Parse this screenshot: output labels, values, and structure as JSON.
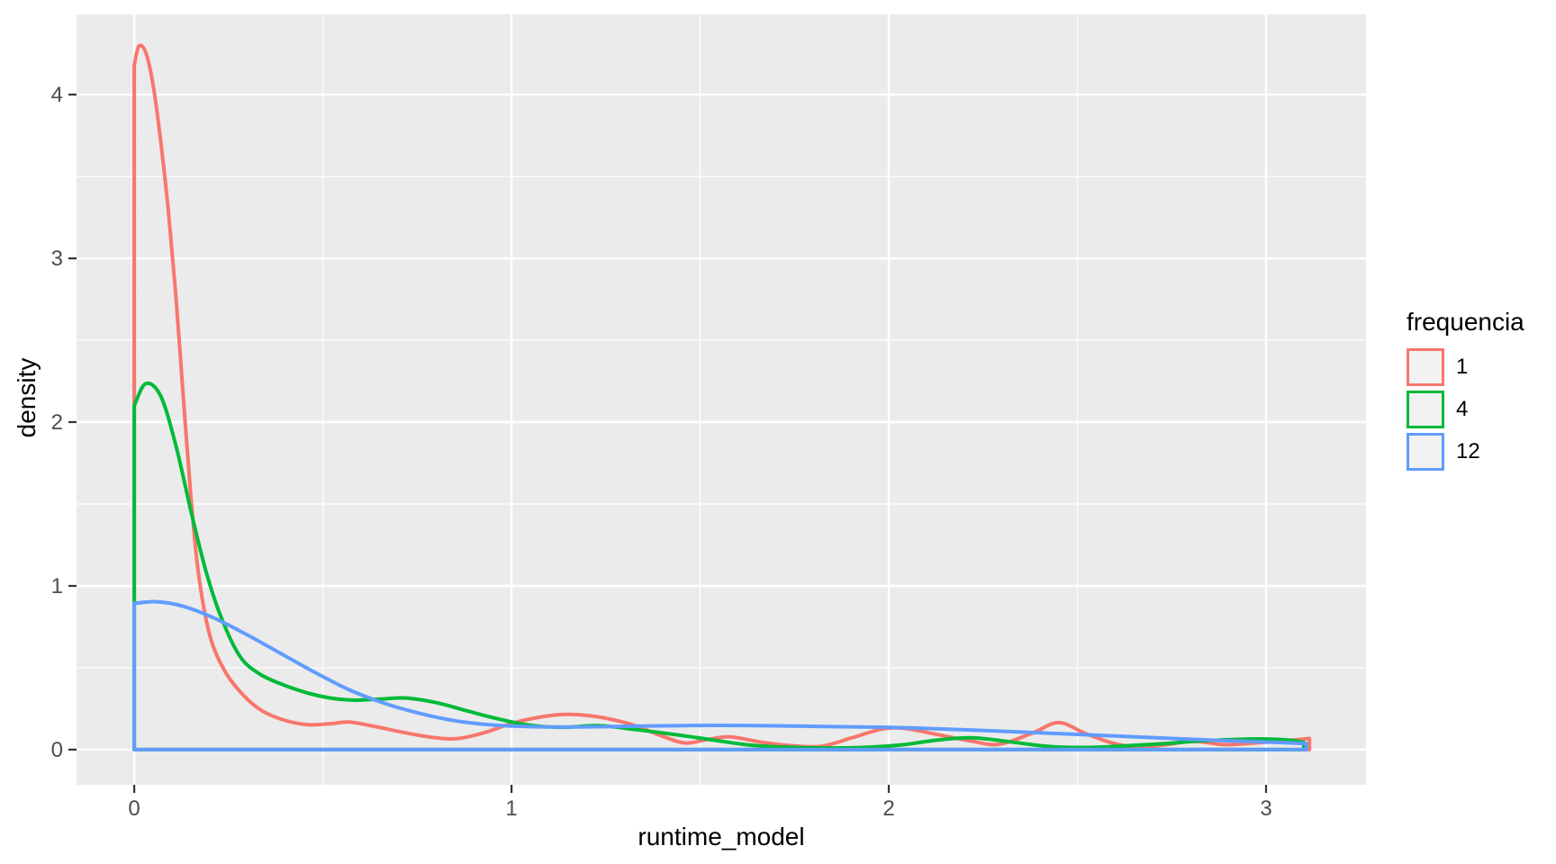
{
  "figure": {
    "background": "#FFFFFF",
    "panel_background": "#EBEBEB",
    "grid_color": "#FFFFFF",
    "tick_mark_color": "#333333",
    "tick_label_color": "#4D4D4D",
    "axis_title_color": "#000000"
  },
  "axes": {
    "x": {
      "title": "runtime_model",
      "tick_labels": [
        "0",
        "1",
        "2",
        "3"
      ],
      "ticks": [
        0,
        1,
        2,
        3
      ],
      "minor_ticks": [
        0.5,
        1.5,
        2.5
      ]
    },
    "y": {
      "title": "density",
      "tick_labels": [
        "0",
        "1",
        "2",
        "3",
        "4"
      ],
      "ticks": [
        0,
        1,
        2,
        3,
        4
      ],
      "minor_ticks": [
        0.5,
        1.5,
        2.5,
        3.5
      ]
    }
  },
  "legend": {
    "title": "frequencia",
    "key_fill": "#F2F2F2",
    "items": [
      {
        "label": "1",
        "color": "#F8766D"
      },
      {
        "label": "4",
        "color": "#00BA38"
      },
      {
        "label": "12",
        "color": "#619CFF"
      }
    ]
  },
  "chart_data": {
    "type": "area",
    "subtype": "density-outlines-closed-to-baseline",
    "title": "",
    "xlabel": "runtime_model",
    "ylabel": "density",
    "xlim": [
      -0.153,
      3.265
    ],
    "ylim": [
      -0.215,
      4.49
    ],
    "grid": true,
    "legend_position": "right",
    "series": [
      {
        "name": "1",
        "color": "#F8766D",
        "points": [
          [
            0,
            4.18
          ],
          [
            0.012,
            4.295
          ],
          [
            0.03,
            4.26
          ],
          [
            0.05,
            4.06
          ],
          [
            0.07,
            3.72
          ],
          [
            0.09,
            3.3
          ],
          [
            0.11,
            2.78
          ],
          [
            0.13,
            2.15
          ],
          [
            0.15,
            1.55
          ],
          [
            0.17,
            1.08
          ],
          [
            0.2,
            0.7
          ],
          [
            0.24,
            0.48
          ],
          [
            0.29,
            0.33
          ],
          [
            0.34,
            0.235
          ],
          [
            0.4,
            0.178
          ],
          [
            0.46,
            0.152
          ],
          [
            0.52,
            0.158
          ],
          [
            0.57,
            0.168
          ],
          [
            0.64,
            0.14
          ],
          [
            0.72,
            0.102
          ],
          [
            0.8,
            0.072
          ],
          [
            0.86,
            0.068
          ],
          [
            0.93,
            0.105
          ],
          [
            1.0,
            0.16
          ],
          [
            1.08,
            0.2
          ],
          [
            1.15,
            0.215
          ],
          [
            1.23,
            0.2
          ],
          [
            1.32,
            0.152
          ],
          [
            1.4,
            0.082
          ],
          [
            1.46,
            0.04
          ],
          [
            1.52,
            0.062
          ],
          [
            1.58,
            0.078
          ],
          [
            1.66,
            0.046
          ],
          [
            1.74,
            0.024
          ],
          [
            1.82,
            0.02
          ],
          [
            1.9,
            0.07
          ],
          [
            1.98,
            0.124
          ],
          [
            2.04,
            0.13
          ],
          [
            2.12,
            0.096
          ],
          [
            2.21,
            0.056
          ],
          [
            2.29,
            0.032
          ],
          [
            2.38,
            0.1
          ],
          [
            2.45,
            0.165
          ],
          [
            2.52,
            0.1
          ],
          [
            2.59,
            0.042
          ],
          [
            2.66,
            0.015
          ],
          [
            2.74,
            0.032
          ],
          [
            2.81,
            0.05
          ],
          [
            2.89,
            0.03
          ],
          [
            2.97,
            0.04
          ],
          [
            3.04,
            0.052
          ],
          [
            3.115,
            0.068
          ]
        ]
      },
      {
        "name": "4",
        "color": "#00BA38",
        "points": [
          [
            0,
            2.1
          ],
          [
            0.03,
            2.235
          ],
          [
            0.07,
            2.16
          ],
          [
            0.11,
            1.86
          ],
          [
            0.15,
            1.46
          ],
          [
            0.19,
            1.09
          ],
          [
            0.23,
            0.81
          ],
          [
            0.28,
            0.57
          ],
          [
            0.33,
            0.465
          ],
          [
            0.39,
            0.4
          ],
          [
            0.46,
            0.345
          ],
          [
            0.52,
            0.315
          ],
          [
            0.58,
            0.302
          ],
          [
            0.65,
            0.308
          ],
          [
            0.72,
            0.315
          ],
          [
            0.8,
            0.287
          ],
          [
            0.88,
            0.238
          ],
          [
            0.96,
            0.19
          ],
          [
            1.04,
            0.152
          ],
          [
            1.13,
            0.136
          ],
          [
            1.23,
            0.146
          ],
          [
            1.33,
            0.122
          ],
          [
            1.43,
            0.093
          ],
          [
            1.53,
            0.06
          ],
          [
            1.63,
            0.028
          ],
          [
            1.73,
            0.014
          ],
          [
            1.83,
            0.01
          ],
          [
            1.93,
            0.013
          ],
          [
            2.03,
            0.028
          ],
          [
            2.13,
            0.058
          ],
          [
            2.22,
            0.072
          ],
          [
            2.32,
            0.048
          ],
          [
            2.42,
            0.02
          ],
          [
            2.52,
            0.013
          ],
          [
            2.62,
            0.022
          ],
          [
            2.72,
            0.035
          ],
          [
            2.82,
            0.052
          ],
          [
            2.92,
            0.062
          ],
          [
            3.0,
            0.065
          ],
          [
            3.06,
            0.058
          ],
          [
            3.1,
            0.045
          ]
        ]
      },
      {
        "name": "12",
        "color": "#619CFF",
        "points": [
          [
            0,
            0.893
          ],
          [
            0.06,
            0.903
          ],
          [
            0.13,
            0.875
          ],
          [
            0.21,
            0.805
          ],
          [
            0.3,
            0.7
          ],
          [
            0.39,
            0.585
          ],
          [
            0.48,
            0.47
          ],
          [
            0.57,
            0.365
          ],
          [
            0.66,
            0.285
          ],
          [
            0.75,
            0.225
          ],
          [
            0.84,
            0.18
          ],
          [
            0.92,
            0.156
          ],
          [
            1.0,
            0.144
          ],
          [
            1.12,
            0.138
          ],
          [
            1.25,
            0.14
          ],
          [
            1.4,
            0.145
          ],
          [
            1.55,
            0.148
          ],
          [
            1.7,
            0.145
          ],
          [
            1.85,
            0.14
          ],
          [
            2.0,
            0.136
          ],
          [
            2.15,
            0.125
          ],
          [
            2.3,
            0.112
          ],
          [
            2.45,
            0.098
          ],
          [
            2.6,
            0.083
          ],
          [
            2.75,
            0.068
          ],
          [
            2.9,
            0.054
          ],
          [
            3.0,
            0.046
          ],
          [
            3.107,
            0.037
          ]
        ]
      }
    ]
  }
}
